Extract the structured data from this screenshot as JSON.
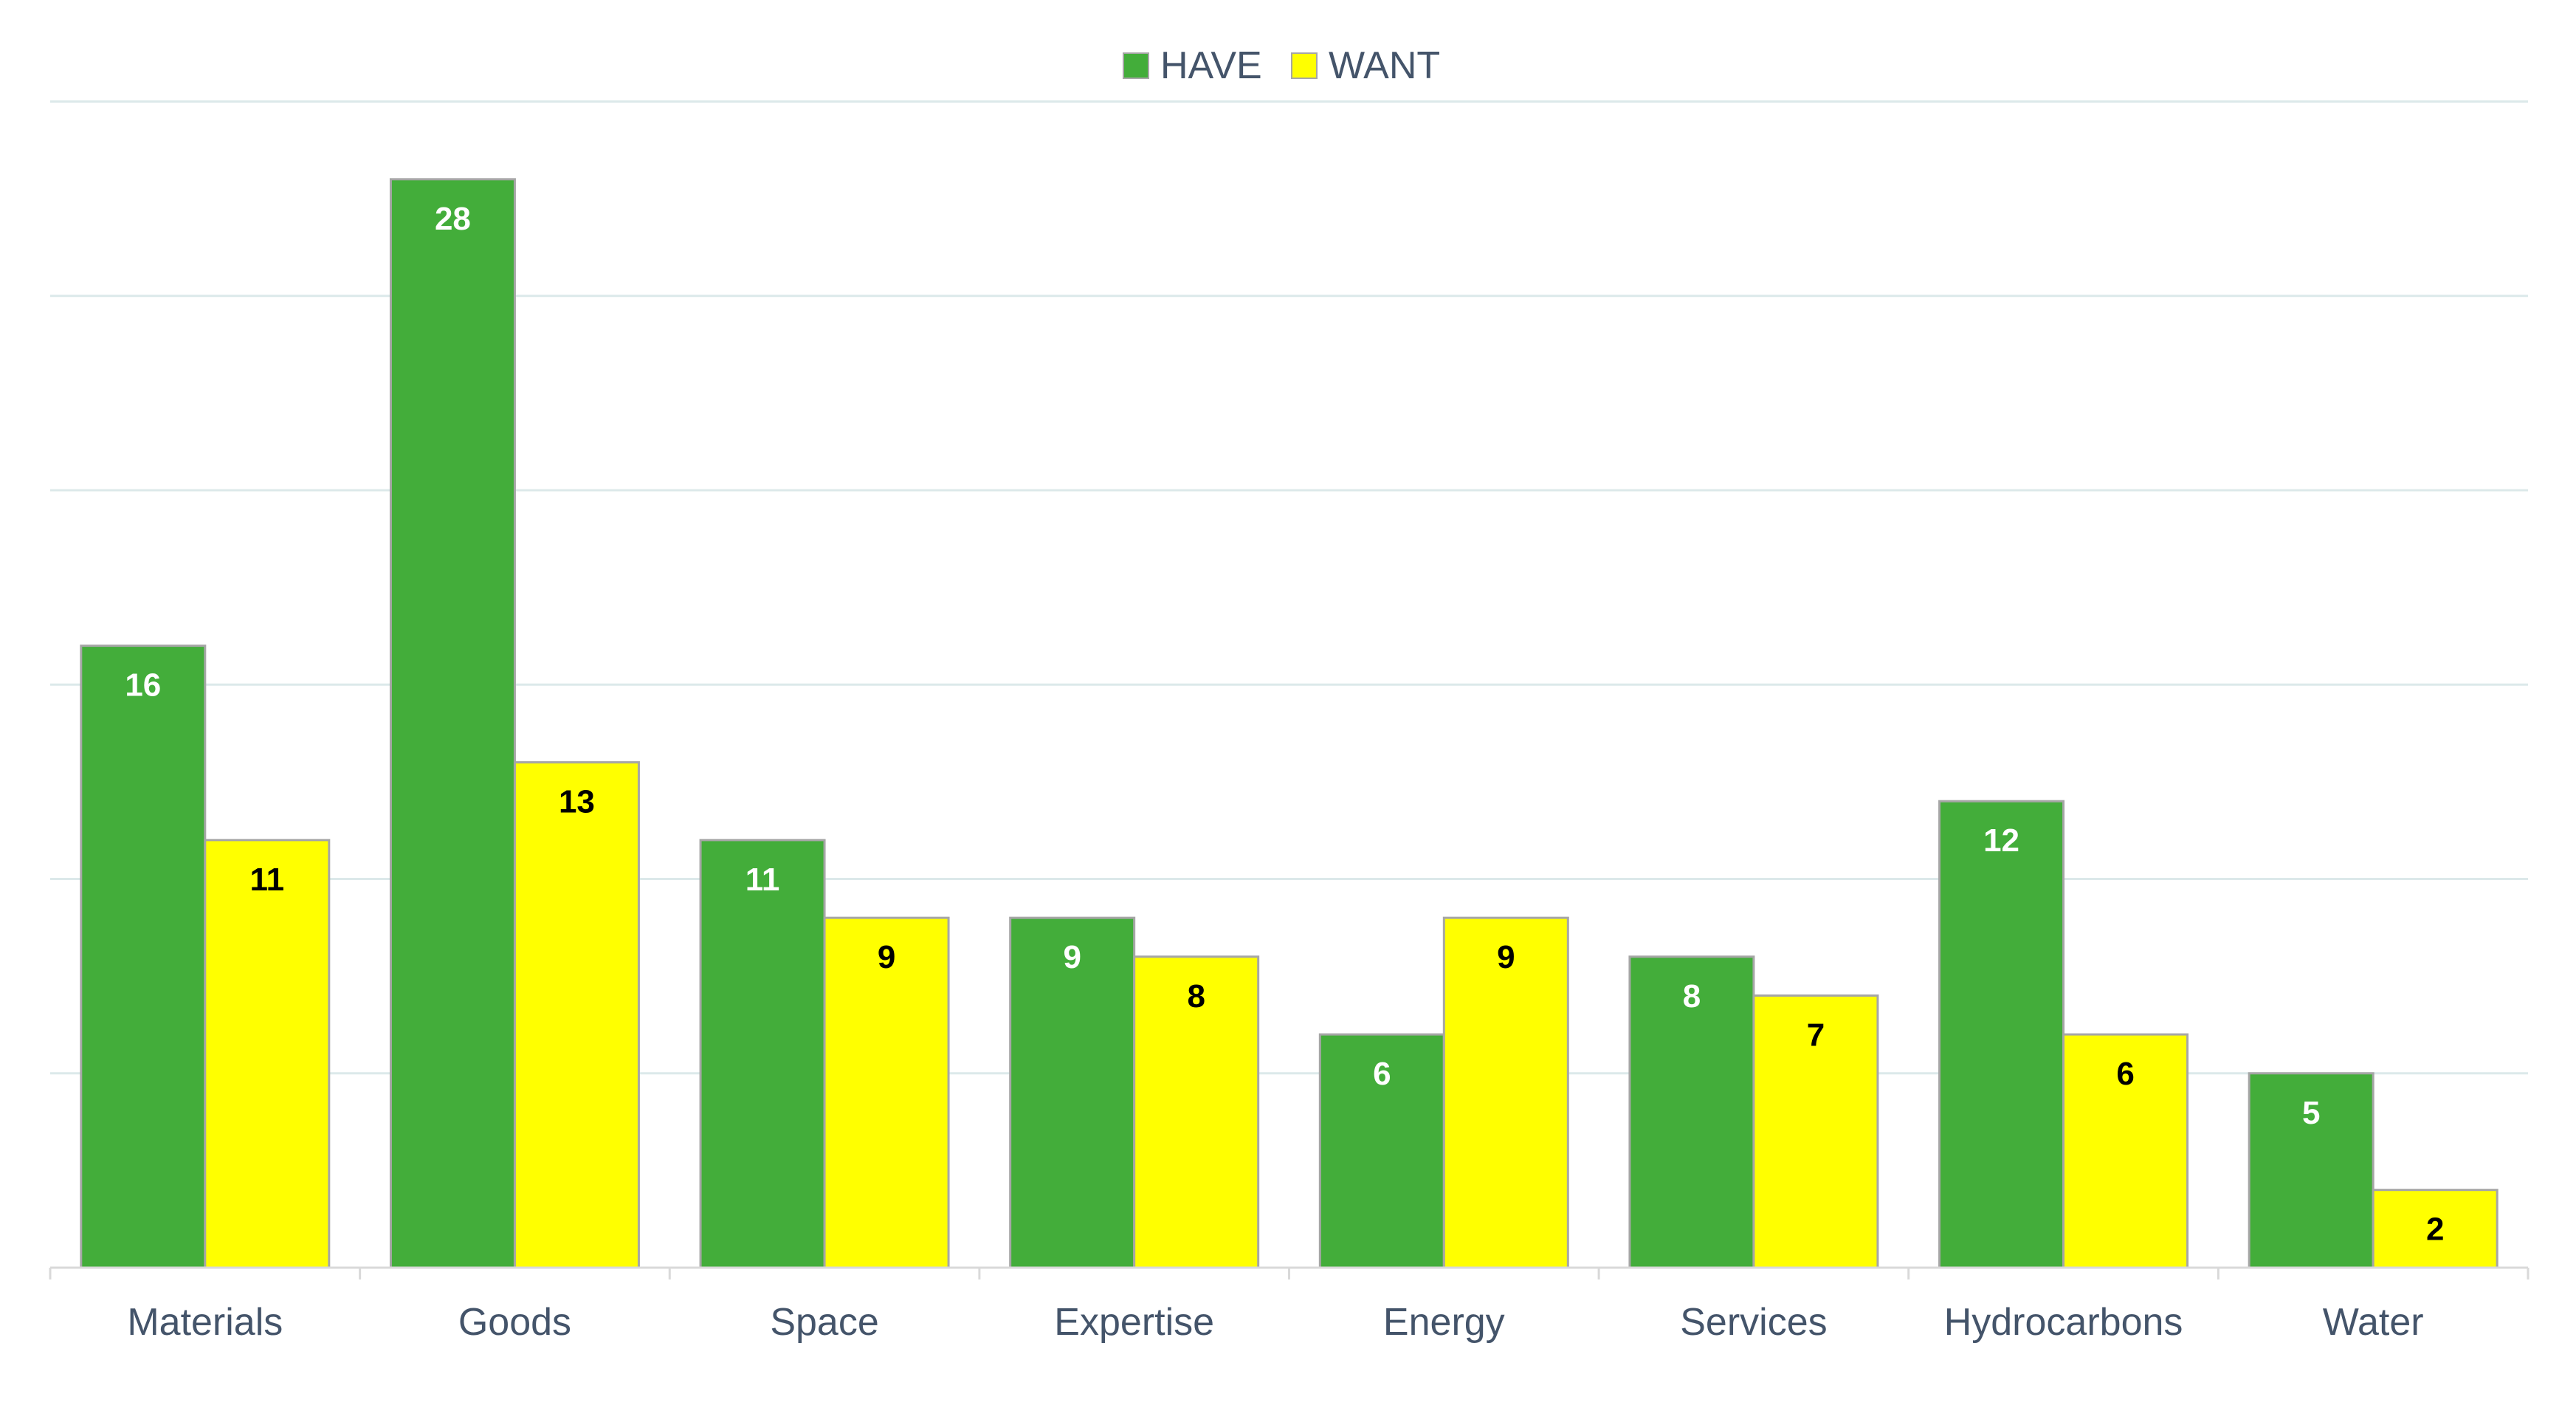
{
  "chart_data": {
    "type": "bar",
    "title": "",
    "xlabel": "",
    "ylabel": "",
    "categories": [
      "Materials",
      "Goods",
      "Space",
      "Expertise",
      "Energy",
      "Services",
      "Hydrocarbons",
      "Water"
    ],
    "series": [
      {
        "name": "HAVE",
        "color": "#43ad3a",
        "label_color": "#ffffff",
        "values": [
          16,
          28,
          11,
          9,
          6,
          8,
          12,
          5
        ]
      },
      {
        "name": "WANT",
        "color": "#ffff00",
        "label_color": "#000000",
        "values": [
          11,
          13,
          9,
          8,
          9,
          7,
          6,
          2
        ]
      }
    ],
    "ylim": [
      0,
      30
    ],
    "gridlines": [
      5,
      10,
      15,
      20,
      25,
      30
    ],
    "grid": true,
    "legend_position": "top-center",
    "colors": {
      "gridline": "#dce9ea",
      "axis": "#d9d9d9",
      "bar_border": "#a6a6a6",
      "text": "#44546a"
    }
  }
}
